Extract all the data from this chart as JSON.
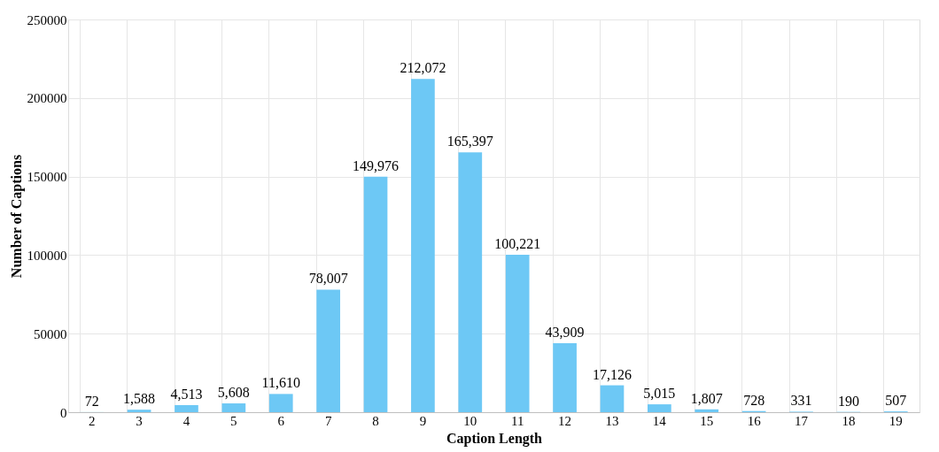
{
  "chart_data": {
    "type": "bar",
    "xlabel": "Caption Length",
    "ylabel": "Number of Captions",
    "categories": [
      "2",
      "3",
      "4",
      "5",
      "6",
      "7",
      "8",
      "9",
      "10",
      "11",
      "12",
      "13",
      "14",
      "15",
      "16",
      "17",
      "18",
      "19"
    ],
    "values": [
      72,
      1588,
      4513,
      5608,
      11610,
      78007,
      149976,
      212072,
      165397,
      100221,
      43909,
      17126,
      5015,
      1807,
      728,
      331,
      190,
      507
    ],
    "value_labels": [
      "72",
      "1,588",
      "4,513",
      "5,608",
      "11,610",
      "78,007",
      "149,976",
      "212,072",
      "165,397",
      "100,221",
      "43,909",
      "17,126",
      "5,015",
      "1,807",
      "728",
      "331",
      "190",
      "507"
    ],
    "color": "#6dc8f5",
    "ylim": [
      0,
      250000
    ],
    "yticks": [
      0,
      50000,
      100000,
      150000,
      200000,
      250000
    ],
    "grid": true
  }
}
